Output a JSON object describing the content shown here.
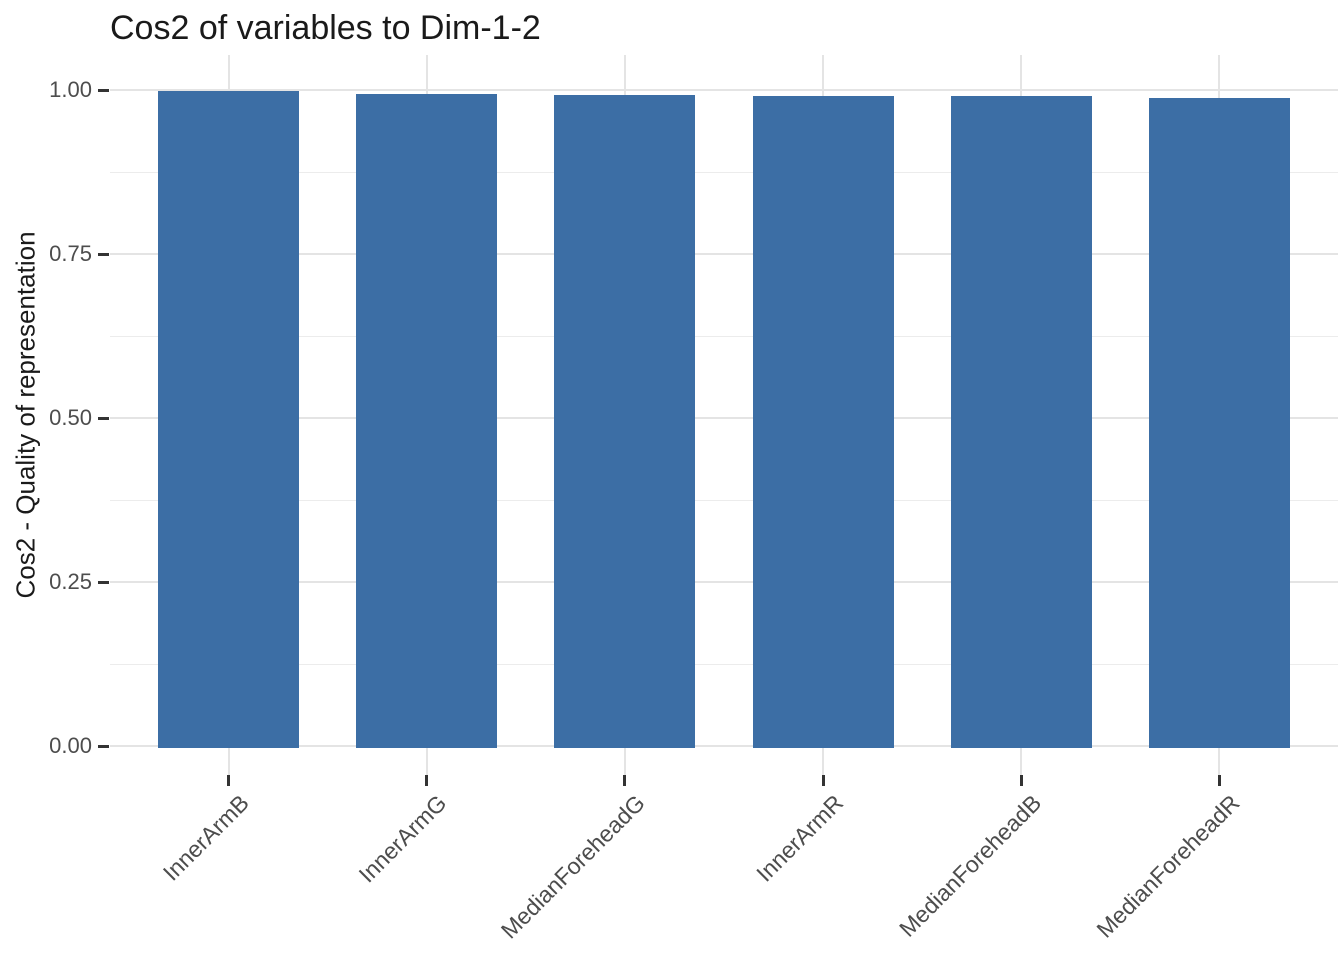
{
  "page": {
    "background_color": "#FFFFFF"
  },
  "chart_data": {
    "type": "bar",
    "title": "Cos2 of variables to Dim-1-2",
    "xlabel": "",
    "ylabel": "Cos2 - Quality of representation",
    "categories": [
      "InnerArmB",
      "InnerArmG",
      "MedianForeheadG",
      "InnerArmR",
      "MedianForeheadB",
      "MedianForeheadR"
    ],
    "values": [
      0.997,
      0.993,
      0.992,
      0.99,
      0.99,
      0.987
    ],
    "ylim": [
      0,
      1
    ],
    "yticks": [
      0,
      0.25,
      0.5,
      0.75,
      1
    ],
    "ytick_labels": [
      "0.00",
      "0.25",
      "0.50",
      "0.75",
      "1.00"
    ],
    "minor_yticks": [
      0.125,
      0.375,
      0.625,
      0.875
    ],
    "y_expansion": 0.05,
    "grid": "major-and-minor",
    "legend_position": "none",
    "x_label_rotation_deg": 45,
    "bar_width_fraction": 0.71,
    "colors": {
      "bar_fill": "#3C6EA5",
      "grid_major": "#E4E4E4",
      "grid_minor": "#ECECEC",
      "axis_tick": "#333333",
      "tick_label_text": "#4D4D4D",
      "title_text": "#1A1A1A"
    }
  }
}
